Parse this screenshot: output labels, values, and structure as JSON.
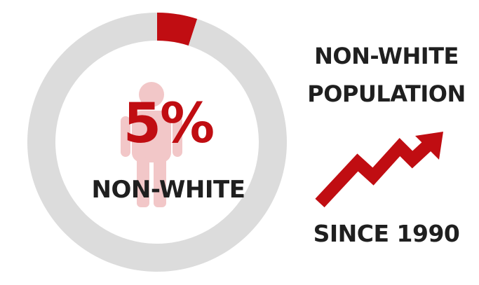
{
  "chart_data": {
    "type": "pie",
    "style": "donut",
    "slices": [
      {
        "name": "Non-white",
        "value": 5,
        "color": "#c00d12"
      },
      {
        "name": "",
        "value": 95,
        "color": "#dcdcdc"
      }
    ],
    "center_value_label": "5%",
    "center_category_label": "NON-WHITE"
  },
  "side_panel": {
    "title_line1": "NON-WHITE",
    "title_line2": "POPULATION",
    "trend_icon": "upward-trend-arrow-icon",
    "since_label": "SINCE 1990"
  },
  "colors": {
    "accent": "#c00d12",
    "ring_background": "#dcdcdc",
    "person_silhouette": "#f2c7c8",
    "text_dark": "#1f1f1f"
  }
}
